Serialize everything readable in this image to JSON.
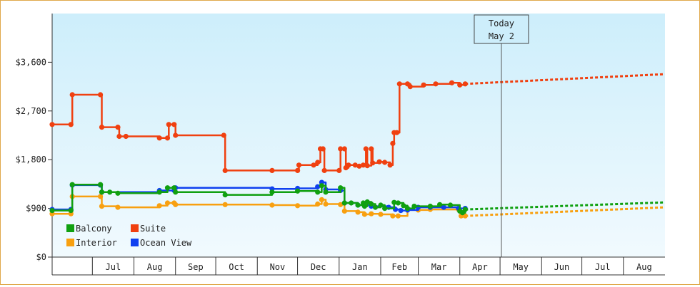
{
  "chart_data": {
    "type": "line",
    "title": "",
    "xlabel": "",
    "ylabel": "",
    "ylim": [
      0,
      4500
    ],
    "y_ticks": [
      {
        "value": 0,
        "label": "$0"
      },
      {
        "value": 900,
        "label": "$900"
      },
      {
        "value": 1800,
        "label": "$1,800"
      },
      {
        "value": 2700,
        "label": "$2,700"
      },
      {
        "value": 3600,
        "label": "$3,600"
      }
    ],
    "x_start": "2024-06-01",
    "x_end": "2025-09-01",
    "month_ticks": [
      {
        "label": "Jul",
        "date": "2024-07-01"
      },
      {
        "label": "Aug",
        "date": "2024-08-01"
      },
      {
        "label": "Sep",
        "date": "2024-09-01"
      },
      {
        "label": "Oct",
        "date": "2024-10-01"
      },
      {
        "label": "Nov",
        "date": "2024-11-01"
      },
      {
        "label": "Dec",
        "date": "2024-12-01"
      },
      {
        "label": "Jan",
        "date": "2025-01-01"
      },
      {
        "label": "Feb",
        "date": "2025-02-01"
      },
      {
        "label": "Mar",
        "date": "2025-03-01"
      },
      {
        "label": "Apr",
        "date": "2025-04-01"
      },
      {
        "label": "May",
        "date": "2025-05-01"
      },
      {
        "label": "Jun",
        "date": "2025-06-01"
      },
      {
        "label": "Jul",
        "date": "2025-07-01"
      },
      {
        "label": "Aug",
        "date": "2025-08-01"
      }
    ],
    "marker": {
      "line1": "Today",
      "line2": "May 2",
      "date": "2025-05-02"
    },
    "legend_position": "bottom-left",
    "series": [
      {
        "name": "Suite",
        "color": "#f04010",
        "points": [
          [
            "2024-06-01",
            2450
          ],
          [
            "2024-06-15",
            2450
          ],
          [
            "2024-06-16",
            3000
          ],
          [
            "2024-07-07",
            3000
          ],
          [
            "2024-07-08",
            2400
          ],
          [
            "2024-07-20",
            2400
          ],
          [
            "2024-07-21",
            2230
          ],
          [
            "2024-07-26",
            2230
          ],
          [
            "2024-08-20",
            2200
          ],
          [
            "2024-08-26",
            2200
          ],
          [
            "2024-08-27",
            2450
          ],
          [
            "2024-08-31",
            2450
          ],
          [
            "2024-09-01",
            2250
          ],
          [
            "2024-10-07",
            2250
          ],
          [
            "2024-10-08",
            1600
          ],
          [
            "2024-11-12",
            1600
          ],
          [
            "2024-12-01",
            1600
          ],
          [
            "2024-12-02",
            1700
          ],
          [
            "2024-12-13",
            1700
          ],
          [
            "2024-12-16",
            1750
          ],
          [
            "2024-12-18",
            2000
          ],
          [
            "2024-12-20",
            2000
          ],
          [
            "2024-12-21",
            1600
          ],
          [
            "2025-01-01",
            1600
          ],
          [
            "2025-01-02",
            2000
          ],
          [
            "2025-01-05",
            2000
          ],
          [
            "2025-01-06",
            1650
          ],
          [
            "2025-01-08",
            1700
          ],
          [
            "2025-01-13",
            1700
          ],
          [
            "2025-01-16",
            1680
          ],
          [
            "2025-01-19",
            1700
          ],
          [
            "2025-01-21",
            2000
          ],
          [
            "2025-01-22",
            1690
          ],
          [
            "2025-01-25",
            2000
          ],
          [
            "2025-01-26",
            1740
          ],
          [
            "2025-01-31",
            1760
          ],
          [
            "2025-02-04",
            1750
          ],
          [
            "2025-02-08",
            1700
          ],
          [
            "2025-02-10",
            2100
          ],
          [
            "2025-02-11",
            2300
          ],
          [
            "2025-02-13",
            2300
          ],
          [
            "2025-02-15",
            3200
          ],
          [
            "2025-02-21",
            3200
          ],
          [
            "2025-02-23",
            3150
          ],
          [
            "2025-03-05",
            3180
          ],
          [
            "2025-03-14",
            3200
          ],
          [
            "2025-03-26",
            3220
          ],
          [
            "2025-04-01",
            3180
          ],
          [
            "2025-04-05",
            3200
          ]
        ],
        "forecast": [
          [
            "2025-04-05",
            3200
          ],
          [
            "2025-09-01",
            3380
          ]
        ]
      },
      {
        "name": "Ocean View",
        "color": "#1040f0",
        "points": [
          [
            "2024-06-01",
            880
          ],
          [
            "2024-06-15",
            880
          ],
          [
            "2024-06-16",
            1330
          ],
          [
            "2024-07-07",
            1330
          ],
          [
            "2024-07-08",
            1200
          ],
          [
            "2024-08-20",
            1230
          ],
          [
            "2024-08-31",
            1230
          ],
          [
            "2024-09-01",
            1280
          ],
          [
            "2024-11-12",
            1260
          ],
          [
            "2024-12-01",
            1270
          ],
          [
            "2024-12-16",
            1300
          ],
          [
            "2024-12-19",
            1380
          ],
          [
            "2024-12-22",
            1250
          ],
          [
            "2025-01-02",
            1230
          ],
          [
            "2025-01-05",
            1000
          ],
          [
            "2025-01-15",
            960
          ],
          [
            "2025-01-25",
            940
          ],
          [
            "2025-02-07",
            920
          ],
          [
            "2025-02-12",
            880
          ],
          [
            "2025-02-16",
            860
          ],
          [
            "2025-02-21",
            870
          ],
          [
            "2025-03-01",
            920
          ],
          [
            "2025-03-10",
            920
          ],
          [
            "2025-03-20",
            920
          ],
          [
            "2025-03-31",
            900
          ],
          [
            "2025-04-05",
            900
          ]
        ],
        "forecast": []
      },
      {
        "name": "Balcony",
        "color": "#10a010",
        "points": [
          [
            "2024-06-01",
            860
          ],
          [
            "2024-06-15",
            860
          ],
          [
            "2024-06-16",
            1340
          ],
          [
            "2024-07-07",
            1340
          ],
          [
            "2024-07-08",
            1200
          ],
          [
            "2024-07-14",
            1200
          ],
          [
            "2024-07-20",
            1180
          ],
          [
            "2024-08-20",
            1200
          ],
          [
            "2024-08-26",
            1280
          ],
          [
            "2024-08-31",
            1280
          ],
          [
            "2024-09-01",
            1200
          ],
          [
            "2024-10-08",
            1150
          ],
          [
            "2024-11-12",
            1200
          ],
          [
            "2024-12-01",
            1220
          ],
          [
            "2024-12-16",
            1200
          ],
          [
            "2024-12-19",
            1320
          ],
          [
            "2024-12-22",
            1200
          ],
          [
            "2025-01-02",
            1280
          ],
          [
            "2025-01-05",
            1000
          ],
          [
            "2025-01-10",
            1000
          ],
          [
            "2025-01-15",
            960
          ],
          [
            "2025-01-19",
            1000
          ],
          [
            "2025-01-20",
            940
          ],
          [
            "2025-01-22",
            1020
          ],
          [
            "2025-01-25",
            980
          ],
          [
            "2025-01-28",
            920
          ],
          [
            "2025-02-01",
            960
          ],
          [
            "2025-02-04",
            900
          ],
          [
            "2025-02-11",
            1010
          ],
          [
            "2025-02-14",
            1000
          ],
          [
            "2025-02-18",
            950
          ],
          [
            "2025-02-21",
            900
          ],
          [
            "2025-02-26",
            940
          ],
          [
            "2025-03-10",
            940
          ],
          [
            "2025-03-17",
            970
          ],
          [
            "2025-03-25",
            960
          ],
          [
            "2025-04-01",
            850
          ],
          [
            "2025-04-03",
            820
          ],
          [
            "2025-04-05",
            880
          ]
        ],
        "forecast": [
          [
            "2025-04-05",
            880
          ],
          [
            "2025-09-01",
            1010
          ]
        ]
      },
      {
        "name": "Interior",
        "color": "#f8a010",
        "points": [
          [
            "2024-06-01",
            800
          ],
          [
            "2024-06-15",
            800
          ],
          [
            "2024-06-16",
            1120
          ],
          [
            "2024-07-07",
            1120
          ],
          [
            "2024-07-08",
            940
          ],
          [
            "2024-07-20",
            920
          ],
          [
            "2024-08-20",
            950
          ],
          [
            "2024-08-26",
            1000
          ],
          [
            "2024-08-31",
            1000
          ],
          [
            "2024-09-01",
            970
          ],
          [
            "2024-10-08",
            970
          ],
          [
            "2024-11-12",
            960
          ],
          [
            "2024-12-01",
            950
          ],
          [
            "2024-12-16",
            980
          ],
          [
            "2024-12-19",
            1060
          ],
          [
            "2024-12-22",
            980
          ],
          [
            "2025-01-02",
            970
          ],
          [
            "2025-01-05",
            850
          ],
          [
            "2025-01-15",
            830
          ],
          [
            "2025-01-20",
            790
          ],
          [
            "2025-01-25",
            800
          ],
          [
            "2025-02-01",
            790
          ],
          [
            "2025-02-10",
            760
          ],
          [
            "2025-02-14",
            760
          ],
          [
            "2025-02-21",
            870
          ],
          [
            "2025-03-01",
            870
          ],
          [
            "2025-03-10",
            880
          ],
          [
            "2025-03-31",
            880
          ],
          [
            "2025-04-02",
            760
          ],
          [
            "2025-04-05",
            760
          ]
        ],
        "forecast": [
          [
            "2025-04-05",
            760
          ],
          [
            "2025-09-01",
            920
          ]
        ]
      }
    ],
    "legend": [
      {
        "name": "Balcony",
        "color": "#10a010"
      },
      {
        "name": "Suite",
        "color": "#f04010"
      },
      {
        "name": "Interior",
        "color": "#f8a010"
      },
      {
        "name": "Ocean View",
        "color": "#1040f0"
      }
    ]
  }
}
